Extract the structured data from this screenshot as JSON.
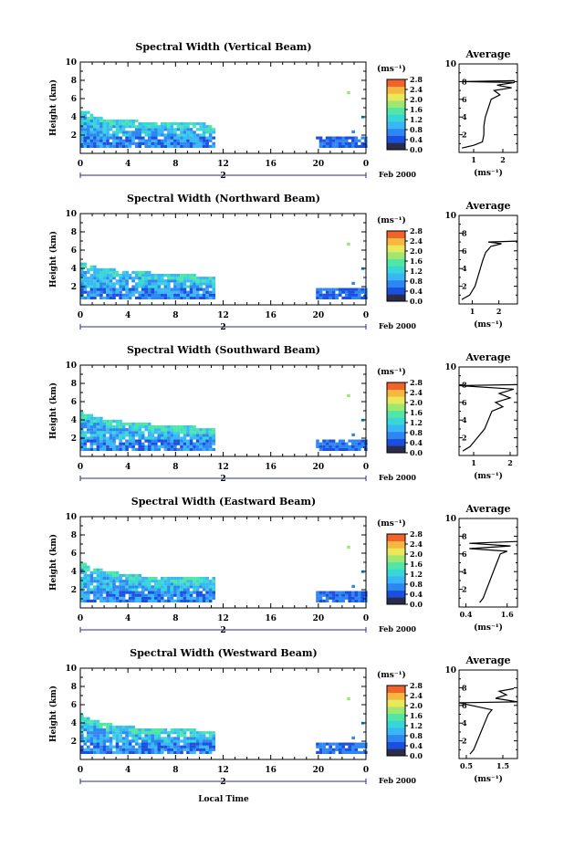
{
  "figure": {
    "xlabel": "Local Time",
    "time_ticks": [
      "0",
      "4",
      "8",
      "12",
      "16",
      "20",
      "0"
    ],
    "date_label": "Feb 2000",
    "day_marker": "2",
    "ylabel": "Height (km)",
    "height_ticks": [
      "2",
      "4",
      "6",
      "8",
      "10"
    ],
    "colorbar_unit": "(ms⁻¹)",
    "colorbar_ticks": [
      "0.0",
      "0.4",
      "0.8",
      "1.2",
      "1.6",
      "2.0",
      "2.4",
      "2.8"
    ],
    "avg_title": "Average",
    "avg_xlabel": "(ms⁻¹)",
    "colors": {
      "colorbar": [
        "#2b2c4a",
        "#1b4fe0",
        "#2e86f2",
        "#39b6f5",
        "#38d7d7",
        "#4fe6a6",
        "#9ee872",
        "#e8e85a",
        "#f7b840",
        "#f4622c"
      ]
    }
  },
  "chart_data": [
    {
      "type": "heatmap",
      "title": "Spectral Width (Vertical Beam)",
      "xlabel": "Local Time",
      "ylabel": "Height (km)",
      "xlim": [
        0,
        24
      ],
      "ylim": [
        0,
        10
      ],
      "clim": [
        0.0,
        2.8
      ],
      "main_echo": {
        "time": [
          0,
          11.2
        ],
        "height_top": [
          4.6,
          3.7,
          3.5,
          3.3,
          3.2,
          3.2,
          3.0
        ]
      },
      "late_echo": {
        "time": [
          19.8,
          24
        ],
        "height": [
          0.6,
          1.6
        ]
      },
      "average": {
        "xticks": [
          "1",
          "2"
        ],
        "xlim": [
          0.5,
          2.5
        ],
        "ylim": [
          0,
          10
        ],
        "profile": [
          [
            0.6,
            0.5
          ],
          [
            1.0,
            0.8
          ],
          [
            1.3,
            1.2
          ],
          [
            1.35,
            2.0
          ],
          [
            1.35,
            3.0
          ],
          [
            1.4,
            4.0
          ],
          [
            1.5,
            5.0
          ],
          [
            1.6,
            6.0
          ],
          [
            1.9,
            6.5
          ],
          [
            1.7,
            7.0
          ],
          [
            2.3,
            7.3
          ],
          [
            1.8,
            7.6
          ],
          [
            2.4,
            7.9
          ],
          [
            0.6,
            8.0
          ],
          [
            2.4,
            8.1
          ]
        ]
      }
    },
    {
      "type": "heatmap",
      "title": "Spectral Width (Northward Beam)",
      "xlabel": "Local Time",
      "ylabel": "Height (km)",
      "xlim": [
        0,
        24
      ],
      "ylim": [
        0,
        10
      ],
      "clim": [
        0.0,
        2.8
      ],
      "main_echo": {
        "time": [
          0,
          11.2
        ],
        "height_top": [
          4.5,
          3.8,
          3.6,
          3.4,
          3.2,
          3.1,
          3.0
        ]
      },
      "late_echo": {
        "time": [
          19.8,
          24
        ],
        "height": [
          0.6,
          1.6
        ]
      },
      "average": {
        "xticks": [
          "1",
          "2"
        ],
        "xlim": [
          0.5,
          2.7
        ],
        "ylim": [
          0,
          10
        ],
        "profile": [
          [
            0.6,
            0.5
          ],
          [
            0.9,
            1.0
          ],
          [
            1.1,
            2.0
          ],
          [
            1.2,
            3.0
          ],
          [
            1.3,
            4.0
          ],
          [
            1.4,
            5.0
          ],
          [
            1.5,
            5.8
          ],
          [
            1.7,
            6.5
          ],
          [
            2.1,
            6.8
          ],
          [
            1.6,
            7.0
          ],
          [
            2.7,
            7.1
          ]
        ]
      }
    },
    {
      "type": "heatmap",
      "title": "Spectral Width (Southward Beam)",
      "xlabel": "Local Time",
      "ylabel": "Height (km)",
      "xlim": [
        0,
        24
      ],
      "ylim": [
        0,
        10
      ],
      "clim": [
        0.0,
        2.8
      ],
      "main_echo": {
        "time": [
          0,
          11.2
        ],
        "height_top": [
          4.7,
          4.0,
          3.6,
          3.4,
          3.2,
          3.1,
          3.0
        ]
      },
      "late_echo": {
        "time": [
          19.8,
          24
        ],
        "height": [
          0.6,
          1.6
        ]
      },
      "average": {
        "xticks": [
          "1",
          "2"
        ],
        "xlim": [
          0.6,
          2.2
        ],
        "ylim": [
          0,
          10
        ],
        "profile": [
          [
            0.7,
            0.5
          ],
          [
            0.9,
            1.0
          ],
          [
            1.1,
            2.0
          ],
          [
            1.3,
            3.0
          ],
          [
            1.4,
            4.0
          ],
          [
            1.5,
            5.0
          ],
          [
            1.8,
            5.5
          ],
          [
            1.6,
            6.0
          ],
          [
            2.0,
            6.5
          ],
          [
            1.7,
            7.0
          ],
          [
            2.1,
            7.5
          ],
          [
            0.6,
            7.9
          ],
          [
            2.2,
            8.0
          ]
        ]
      }
    },
    {
      "type": "heatmap",
      "title": "Spectral Width (Eastward Beam)",
      "xlabel": "Local Time",
      "ylabel": "Height (km)",
      "xlim": [
        0,
        24
      ],
      "ylim": [
        0,
        10
      ],
      "clim": [
        0.0,
        2.8
      ],
      "main_echo": {
        "time": [
          0,
          11.2
        ],
        "height_top": [
          4.8,
          3.9,
          3.6,
          3.3,
          3.2,
          3.1,
          3.1
        ]
      },
      "late_echo": {
        "time": [
          19.8,
          24
        ],
        "height": [
          0.6,
          1.6
        ]
      },
      "average": {
        "xticks": [
          "0.4",
          "1.6"
        ],
        "xlim": [
          0.2,
          1.9
        ],
        "ylim": [
          0,
          10
        ],
        "profile": [
          [
            0.8,
            0.5
          ],
          [
            0.9,
            1.0
          ],
          [
            1.0,
            2.0
          ],
          [
            1.1,
            3.0
          ],
          [
            1.2,
            4.0
          ],
          [
            1.3,
            5.0
          ],
          [
            1.4,
            6.0
          ],
          [
            1.6,
            6.3
          ],
          [
            0.5,
            6.6
          ],
          [
            1.7,
            6.9
          ],
          [
            0.5,
            7.2
          ],
          [
            1.9,
            7.4
          ]
        ]
      }
    },
    {
      "type": "heatmap",
      "title": "Spectral Width (Westward Beam)",
      "xlabel": "Local Time",
      "ylabel": "Height (km)",
      "xlim": [
        0,
        24
      ],
      "ylim": [
        0,
        10
      ],
      "clim": [
        0.0,
        2.8
      ],
      "main_echo": {
        "time": [
          0,
          11.2
        ],
        "height_top": [
          4.7,
          3.8,
          3.5,
          3.3,
          3.2,
          3.1,
          3.0
        ]
      },
      "late_echo": {
        "time": [
          19.8,
          24
        ],
        "height": [
          0.6,
          1.6
        ]
      },
      "average": {
        "xticks": [
          "0.5",
          "1.5"
        ],
        "xlim": [
          0.3,
          1.9
        ],
        "ylim": [
          0,
          10
        ],
        "profile": [
          [
            0.6,
            0.5
          ],
          [
            0.7,
            1.0
          ],
          [
            0.8,
            2.0
          ],
          [
            0.9,
            3.0
          ],
          [
            1.0,
            4.0
          ],
          [
            1.1,
            5.0
          ],
          [
            1.2,
            5.5
          ],
          [
            0.3,
            6.3
          ],
          [
            1.9,
            6.4
          ],
          [
            1.3,
            6.8
          ],
          [
            1.6,
            7.2
          ],
          [
            1.4,
            7.6
          ],
          [
            1.8,
            7.9
          ]
        ]
      }
    }
  ]
}
